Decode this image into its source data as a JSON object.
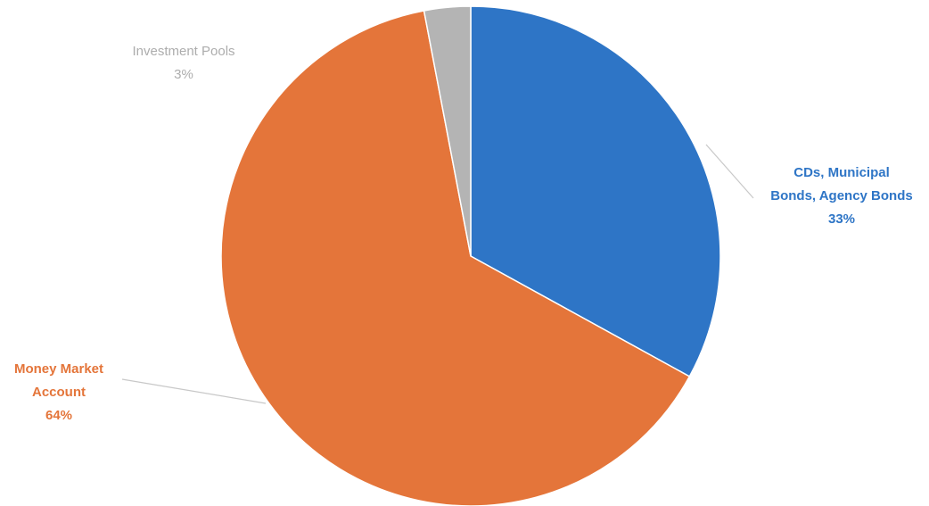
{
  "chart_data": {
    "type": "pie",
    "title": "",
    "start_angle_deg": 0,
    "direction": "clockwise",
    "legend": "none",
    "slices": [
      {
        "label_lines": [
          "CDs, Municipal",
          "Bonds, Agency Bonds"
        ],
        "percent_label": "33%",
        "value": 33,
        "color": "#2E75C6",
        "label_color": "#2E75C6",
        "label_bold": true,
        "label_anchor": "middle",
        "label_side": "right"
      },
      {
        "label_lines": [
          "Money Market",
          "Account"
        ],
        "percent_label": "64%",
        "value": 64,
        "color": "#E4753A",
        "label_color": "#E4753A",
        "label_bold": true,
        "label_anchor": "middle",
        "label_side": "left"
      },
      {
        "label_lines": [
          "Investment Pools"
        ],
        "percent_label": "3%",
        "value": 3,
        "color": "#B4B4B4",
        "label_color": "#ADADAD",
        "label_bold": false,
        "label_anchor": "middle",
        "label_side": "top-left"
      }
    ]
  }
}
